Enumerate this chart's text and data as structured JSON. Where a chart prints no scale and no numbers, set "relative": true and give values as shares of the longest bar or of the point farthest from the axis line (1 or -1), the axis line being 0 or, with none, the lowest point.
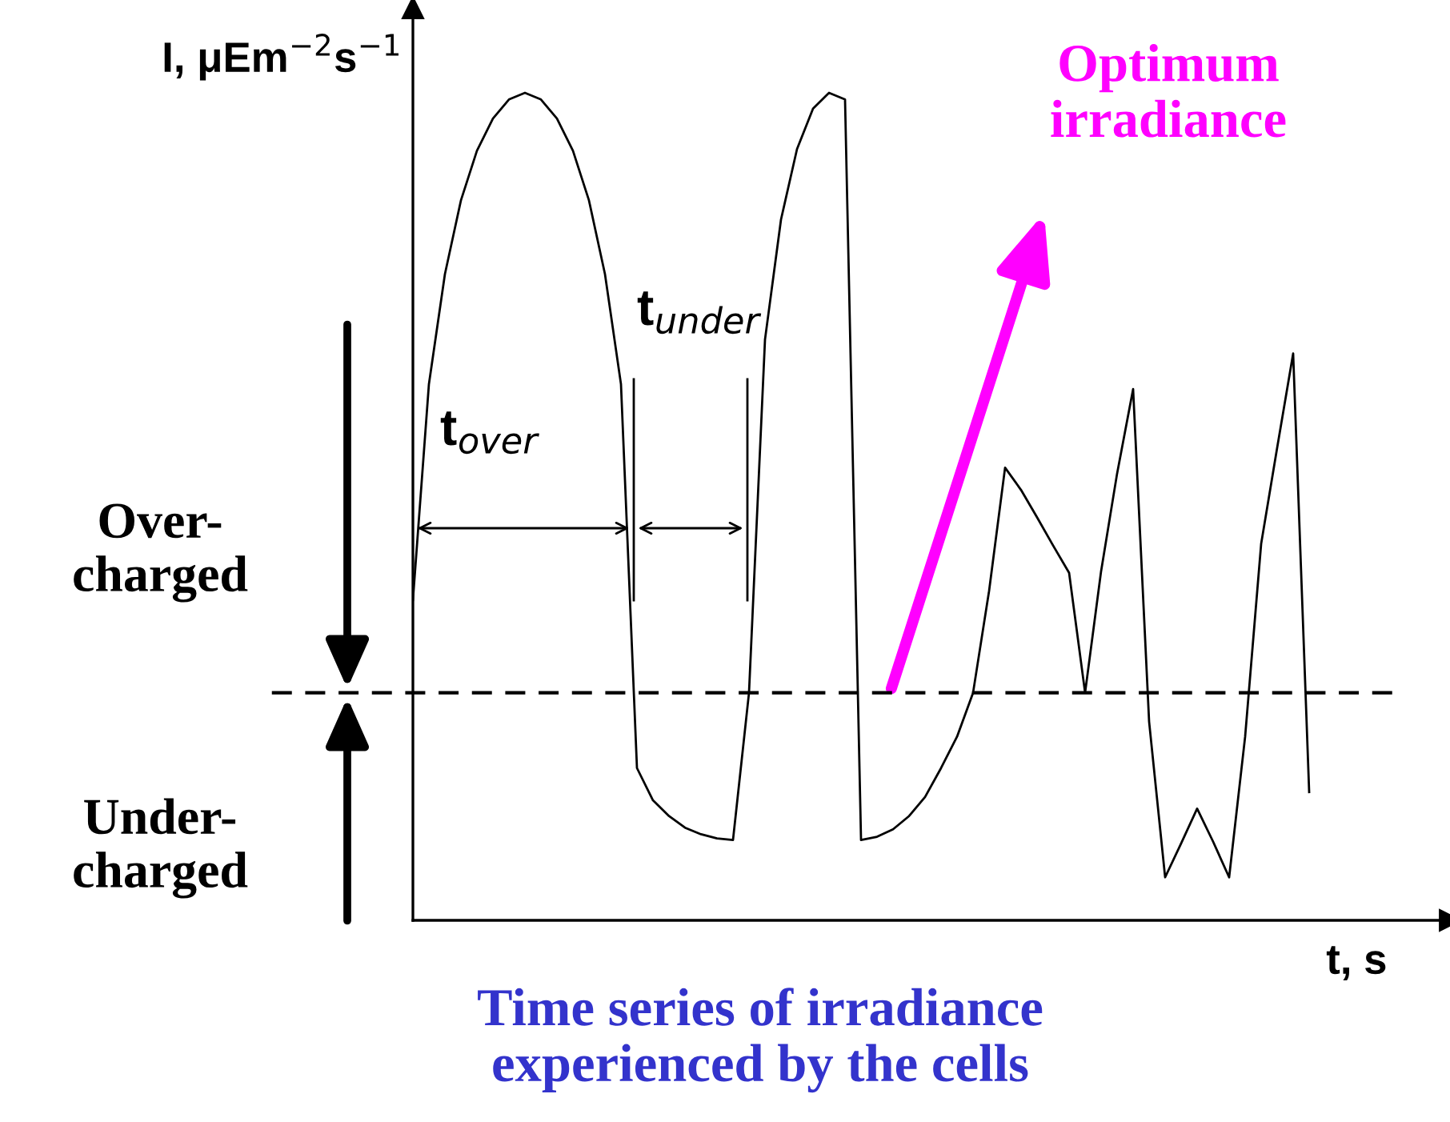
{
  "chart_data": {
    "type": "line",
    "relative": true,
    "tick_labels": false,
    "legend": false,
    "marker": "none",
    "line_style": "solid",
    "ylabel": "I, μEm$^{−2}$s$^{−1}$",
    "xlabel": "t, s",
    "categories": [
      null,
      null,
      null,
      null,
      null,
      null,
      null,
      null,
      null,
      null,
      null,
      null,
      null,
      null,
      null,
      null,
      null,
      null,
      null,
      null,
      null,
      null,
      null,
      null,
      null,
      null,
      null,
      null,
      null,
      null,
      null,
      null,
      null,
      null,
      null,
      null,
      null,
      null,
      null,
      null,
      null,
      null,
      null,
      null,
      null,
      null,
      null,
      null,
      null,
      null,
      null,
      null,
      null,
      null,
      null,
      null,
      null
    ],
    "series": [
      {
        "color": "#000000",
        "values": [
          0.387,
          0.648,
          0.781,
          0.87,
          0.93,
          0.969,
          0.992,
          1.0,
          0.992,
          0.969,
          0.93,
          0.87,
          0.781,
          0.648,
          0.184,
          0.145,
          0.126,
          0.112,
          0.104,
          0.099,
          0.097,
          0.275,
          0.702,
          0.847,
          0.932,
          0.981,
          1.0,
          0.992,
          0.097,
          0.101,
          0.11,
          0.126,
          0.149,
          0.184,
          0.222,
          0.275,
          0.398,
          0.547,
          0.52,
          0.487,
          0.453,
          0.42,
          0.275,
          0.422,
          0.54,
          0.642,
          0.24,
          0.052,
          0.093,
          0.135,
          0.095,
          0.052,
          0.222,
          0.455,
          0.571,
          0.685,
          0.155
        ]
      }
    ],
    "ref_lines": [
      {
        "axis": "y",
        "value": 0.275,
        "color": "#000000",
        "line_style": "dashed"
      }
    ],
    "annotations": [
      "Over-\ncharged",
      "Under-\ncharged",
      "t$_{over}$",
      "t$_{under}$",
      "Time series of irradiance\nexperienced by the cells",
      "Optimum\nirradiance"
    ]
  }
}
